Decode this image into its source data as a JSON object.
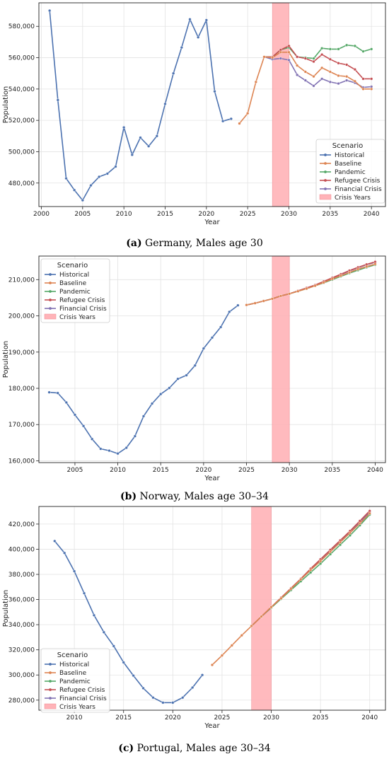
{
  "captions": [
    {
      "letter": "(a)",
      "text": " Germany, Males age 30"
    },
    {
      "letter": "(b)",
      "text": " Norway, Males age 30–34"
    },
    {
      "letter": "(c)",
      "text": " Portugal, Males age 30–34"
    }
  ],
  "colors": {
    "Historical": "#4c72b0",
    "Baseline": "#dd8452",
    "Pandemic": "#55a868",
    "Refugee Crisis": "#c44e52",
    "Financial Crisis": "#8172b3",
    "Crisis Years": "#ffb3b8"
  },
  "chart_data": [
    {
      "type": "line",
      "title": "",
      "xlabel": "Year",
      "ylabel": "Population",
      "xlim": [
        1999.7,
        2041.7
      ],
      "ylim": [
        465000,
        595000
      ],
      "xticks": [
        2000,
        2005,
        2010,
        2015,
        2020,
        2025,
        2030,
        2035,
        2040
      ],
      "yticks": [
        480000,
        500000,
        520000,
        540000,
        560000,
        580000
      ],
      "ytick_labels": [
        "480,000",
        "500,000",
        "520,000",
        "540,000",
        "560,000",
        "580,000"
      ],
      "crisis_years": [
        2028,
        2030
      ],
      "legend": {
        "title": "Scenario",
        "position": "lower-right",
        "entries": [
          "Historical",
          "Baseline",
          "Pandemic",
          "Refugee Crisis",
          "Financial Crisis",
          "Crisis Years"
        ]
      },
      "series": [
        {
          "name": "Historical",
          "x": [
            2001,
            2002,
            2003,
            2004,
            2005,
            2006,
            2007,
            2008,
            2009,
            2010,
            2011,
            2012,
            2013,
            2014,
            2015,
            2016,
            2017,
            2018,
            2019,
            2020,
            2021,
            2022,
            2023
          ],
          "y": [
            590000,
            533000,
            483000,
            475500,
            469000,
            478500,
            484000,
            486000,
            490500,
            515500,
            498000,
            509000,
            503500,
            510000,
            530500,
            550000,
            566500,
            584500,
            573000,
            584000,
            538500,
            519500,
            521000
          ]
        },
        {
          "name": "Baseline",
          "x": [
            2024,
            2025,
            2026,
            2027,
            2028,
            2029,
            2030,
            2031,
            2032,
            2033,
            2034,
            2035,
            2036,
            2037,
            2038,
            2039,
            2040
          ],
          "y": [
            518000,
            524500,
            544500,
            560500,
            560000,
            563500,
            563500,
            555000,
            551000,
            548000,
            553500,
            551000,
            548500,
            548000,
            545000,
            540000,
            540000
          ]
        },
        {
          "name": "Pandemic",
          "x": [
            2027,
            2028,
            2029,
            2030,
            2031,
            2032,
            2033,
            2034,
            2035,
            2036,
            2037,
            2038,
            2039,
            2040
          ],
          "y": [
            560500,
            560500,
            565000,
            566500,
            560500,
            560000,
            559500,
            566000,
            565500,
            565500,
            568000,
            567500,
            564000,
            565500
          ]
        },
        {
          "name": "Refugee Crisis",
          "x": [
            2027,
            2028,
            2029,
            2030,
            2031,
            2032,
            2033,
            2034,
            2035,
            2036,
            2037,
            2038,
            2039,
            2040
          ],
          "y": [
            560500,
            560500,
            565000,
            567500,
            560500,
            559500,
            557500,
            562000,
            559000,
            556500,
            555500,
            552500,
            546500,
            546500
          ]
        },
        {
          "name": "Financial Crisis",
          "x": [
            2027,
            2028,
            2029,
            2030,
            2031,
            2032,
            2033,
            2034,
            2035,
            2036,
            2037,
            2038,
            2039,
            2040
          ],
          "y": [
            560500,
            559000,
            559500,
            558500,
            549000,
            545500,
            542000,
            546500,
            544500,
            543500,
            545500,
            544000,
            541000,
            541500
          ]
        }
      ]
    },
    {
      "type": "line",
      "title": "",
      "xlabel": "Year",
      "ylabel": "Population",
      "xlim": [
        2000.8,
        2041.2
      ],
      "ylim": [
        159500,
        216500
      ],
      "xticks": [
        2005,
        2010,
        2015,
        2020,
        2025,
        2030,
        2035,
        2040
      ],
      "yticks": [
        160000,
        170000,
        180000,
        190000,
        200000,
        210000
      ],
      "ytick_labels": [
        "160,000",
        "170,000",
        "180,000",
        "190,000",
        "200,000",
        "210,000"
      ],
      "crisis_years": [
        2028,
        2030
      ],
      "legend": {
        "title": "Scenario",
        "position": "top-left",
        "entries": [
          "Historical",
          "Baseline",
          "Pandemic",
          "Refugee Crisis",
          "Financial Crisis",
          "Crisis Years"
        ]
      },
      "series": [
        {
          "name": "Historical",
          "x": [
            2002,
            2003,
            2004,
            2005,
            2006,
            2007,
            2008,
            2009,
            2010,
            2011,
            2012,
            2013,
            2014,
            2015,
            2016,
            2017,
            2018,
            2019,
            2020,
            2021,
            2022,
            2023,
            2024
          ],
          "y": [
            178900,
            178700,
            176100,
            172700,
            169600,
            166000,
            163300,
            162800,
            162000,
            163600,
            166800,
            172300,
            175800,
            178400,
            180100,
            182600,
            183600,
            186300,
            191000,
            194000,
            196900,
            201100,
            202900
          ]
        },
        {
          "name": "Baseline",
          "x": [
            2025,
            2026,
            2027,
            2028,
            2029,
            2030,
            2031,
            2032,
            2033,
            2034,
            2035,
            2036,
            2037,
            2038,
            2039,
            2040
          ],
          "y": [
            203000,
            203500,
            204100,
            204700,
            205500,
            206100,
            206800,
            207500,
            208300,
            209200,
            210200,
            211100,
            212000,
            212900,
            213600,
            214300
          ]
        },
        {
          "name": "Pandemic",
          "x": [
            2025,
            2026,
            2027,
            2028,
            2029,
            2030,
            2031,
            2032,
            2033,
            2034,
            2035,
            2036,
            2037,
            2038,
            2039,
            2040
          ],
          "y": [
            203000,
            203500,
            204100,
            204700,
            205500,
            206100,
            206800,
            207500,
            208300,
            209100,
            210000,
            210900,
            211800,
            212600,
            213400,
            214100
          ]
        },
        {
          "name": "Refugee Crisis",
          "x": [
            2025,
            2026,
            2027,
            2028,
            2029,
            2030,
            2031,
            2032,
            2033,
            2034,
            2035,
            2036,
            2037,
            2038,
            2039,
            2040
          ],
          "y": [
            203000,
            203500,
            204100,
            204700,
            205500,
            206100,
            206900,
            207700,
            208500,
            209500,
            210500,
            211500,
            212500,
            213400,
            214200,
            214900
          ]
        },
        {
          "name": "Financial Crisis",
          "x": [
            2025,
            2026,
            2027,
            2028,
            2029,
            2030,
            2031,
            2032,
            2033,
            2034,
            2035,
            2036,
            2037,
            2038,
            2039,
            2040
          ],
          "y": [
            203000,
            203500,
            204100,
            204700,
            205500,
            206100,
            206900,
            207700,
            208500,
            209400,
            210400,
            211400,
            212400,
            213300,
            214100,
            214800
          ]
        }
      ]
    },
    {
      "type": "line",
      "title": "",
      "xlabel": "Year",
      "ylabel": "Population",
      "xlim": [
        2006.4,
        2041.6
      ],
      "ylim": [
        272000,
        434000
      ],
      "xticks": [
        2010,
        2015,
        2020,
        2025,
        2030,
        2035,
        2040
      ],
      "yticks": [
        280000,
        300000,
        320000,
        340000,
        360000,
        380000,
        400000,
        420000
      ],
      "ytick_labels": [
        "280,000",
        "300,000",
        "320,000",
        "340,000",
        "360,000",
        "380,000",
        "400,000",
        "420,000"
      ],
      "crisis_years": [
        2028,
        2030
      ],
      "legend": {
        "title": "Scenario",
        "position": "lower-left",
        "entries": [
          "Historical",
          "Baseline",
          "Pandemic",
          "Refugee Crisis",
          "Financial Crisis",
          "Crisis Years"
        ]
      },
      "series": [
        {
          "name": "Historical",
          "x": [
            2008,
            2009,
            2010,
            2011,
            2012,
            2013,
            2014,
            2015,
            2016,
            2017,
            2018,
            2019,
            2020,
            2021,
            2022,
            2023
          ],
          "y": [
            406500,
            397000,
            382500,
            365000,
            347500,
            334000,
            323000,
            310000,
            299500,
            289500,
            282000,
            278000,
            278000,
            282000,
            290000,
            300000
          ]
        },
        {
          "name": "Baseline",
          "x": [
            2024,
            2025,
            2026,
            2027,
            2028,
            2029,
            2030,
            2031,
            2032,
            2033,
            2034,
            2035,
            2036,
            2037,
            2038,
            2039,
            2040
          ],
          "y": [
            308000,
            315500,
            323500,
            331500,
            339000,
            346500,
            354000,
            361000,
            368500,
            376000,
            383500,
            390500,
            398000,
            405500,
            413000,
            420500,
            428500
          ]
        },
        {
          "name": "Pandemic",
          "x": [
            2028,
            2029,
            2030,
            2031,
            2032,
            2033,
            2034,
            2035,
            2036,
            2037,
            2038,
            2039,
            2040
          ],
          "y": [
            339000,
            346500,
            353500,
            360500,
            367500,
            374500,
            381500,
            388500,
            396000,
            403500,
            411000,
            419000,
            427500
          ]
        },
        {
          "name": "Refugee Crisis",
          "x": [
            2028,
            2029,
            2030,
            2031,
            2032,
            2033,
            2034,
            2035,
            2036,
            2037,
            2038,
            2039,
            2040
          ],
          "y": [
            339000,
            346500,
            354000,
            361500,
            369000,
            376500,
            384500,
            392000,
            399500,
            407000,
            414500,
            422500,
            430500
          ]
        },
        {
          "name": "Financial Crisis",
          "x": [
            2028,
            2029,
            2030,
            2031,
            2032,
            2033,
            2034,
            2035,
            2036,
            2037,
            2038,
            2039,
            2040
          ],
          "y": [
            339000,
            346500,
            353500,
            361000,
            368500,
            376000,
            383500,
            391000,
            398500,
            406000,
            413500,
            421500,
            429500
          ]
        }
      ]
    }
  ]
}
